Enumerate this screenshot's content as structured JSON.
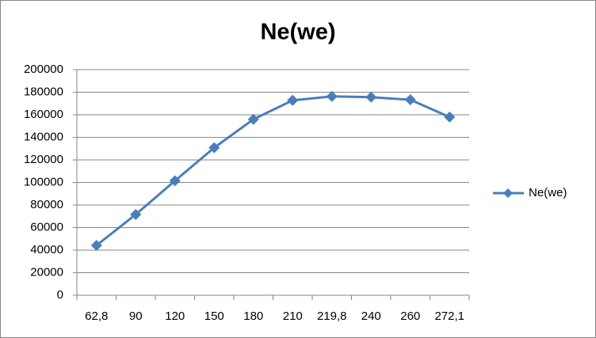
{
  "chart_data": {
    "type": "line",
    "title": "Ne(we)",
    "categories": [
      "62,8",
      "90",
      "120",
      "150",
      "180",
      "210",
      "219,8",
      "240",
      "260",
      "272,1"
    ],
    "series": [
      {
        "name": "Ne(we)",
        "color": "#4a7ebb",
        "values": [
          44200,
          71600,
          101500,
          130800,
          156000,
          172800,
          176300,
          175600,
          173300,
          158000
        ]
      }
    ],
    "ylim": [
      0,
      200000
    ],
    "yticks": [
      0,
      20000,
      40000,
      60000,
      80000,
      100000,
      120000,
      140000,
      160000,
      180000,
      200000
    ],
    "grid": true,
    "legend": "right"
  }
}
